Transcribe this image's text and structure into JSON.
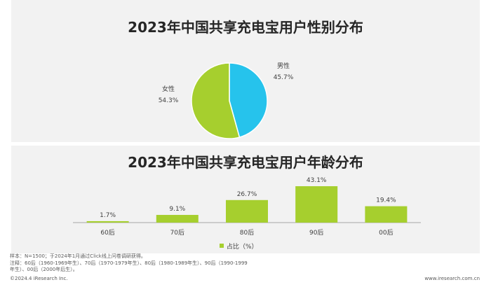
{
  "colors": {
    "female": "#a6cf2e",
    "male": "#26c3ec",
    "bar": "#a6cf2e",
    "axis": "#a6a6a6",
    "text": "#404040"
  },
  "chart_data": [
    {
      "type": "pie",
      "title": "2023年中国共享充电宝用户性别分布",
      "slices": [
        {
          "name": "男性",
          "value": 45.7,
          "label": "45.7%"
        },
        {
          "name": "女性",
          "value": 54.3,
          "label": "54.3%"
        }
      ]
    },
    {
      "type": "bar",
      "title": "2023年中国共享充电宝用户年龄分布",
      "categories": [
        "60后",
        "70后",
        "80后",
        "90后",
        "00后"
      ],
      "values": [
        1.7,
        9.1,
        26.7,
        43.1,
        19.4
      ],
      "labels": [
        "1.7%",
        "9.1%",
        "26.7%",
        "43.1%",
        "19.4%"
      ],
      "ylim": [
        0,
        43.1
      ],
      "legend": "占比（%）",
      "legend_position": "bottom"
    }
  ],
  "notes": {
    "sample": "样本：N=1500；于2024年1月通过Click线上问卷调研获得。",
    "definition": "注释：60后（1960-1969年生）、70后（1970-1979年生）、80后（1980-1989年生）、90后（1990-1999年生）、00后（2000年后生）。"
  },
  "footer": {
    "copyright": "©2024.4 iResearch Inc.",
    "website": "www.iresearch.com.cn"
  }
}
